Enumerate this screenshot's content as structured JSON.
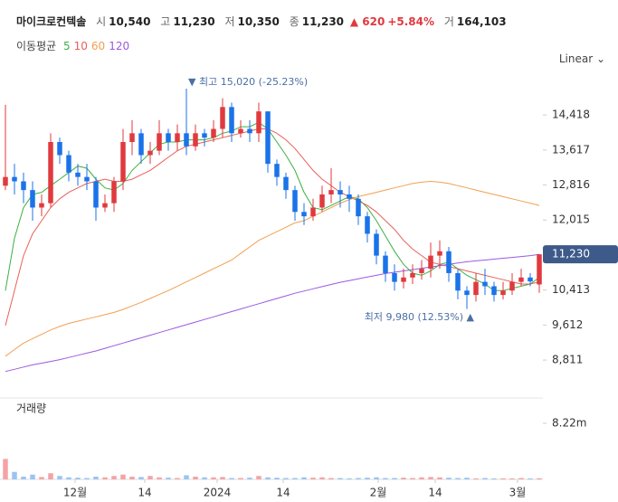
{
  "header": {
    "name": "마이크로컨텍솔",
    "open_label": "시",
    "open": "10,540",
    "high_label": "고",
    "high": "11,230",
    "low_label": "저",
    "low": "10,350",
    "close_label": "종",
    "close": "11,230",
    "change": "▲ 620",
    "change_pct": "+5.84%",
    "volume_label": "거",
    "volume": "164,103"
  },
  "ma_legend": {
    "title": "이동평균",
    "items": [
      {
        "label": "5",
        "color": "#3cb043"
      },
      {
        "label": "10",
        "color": "#e8605a"
      },
      {
        "label": "60",
        "color": "#f0a050"
      },
      {
        "label": "120",
        "color": "#9b59e0"
      }
    ]
  },
  "scale_button": "Linear",
  "chart_data": {
    "type": "candlestick",
    "up_color": "#e03a3e",
    "down_color": "#1a73e8",
    "open": [
      12800,
      13000,
      12900,
      12700,
      12300,
      12400,
      13800,
      13500,
      13100,
      13000,
      12900,
      12300,
      12400,
      12900,
      13800,
      14000,
      13500,
      13600,
      14000,
      13800,
      14000,
      13700,
      14000,
      13900,
      14100,
      14600,
      14000,
      14100,
      14000,
      14500,
      13300,
      13000,
      12700,
      12200,
      12100,
      12300,
      12600,
      12700,
      12600,
      12500,
      12100,
      11700,
      11200,
      10800,
      10600,
      10700,
      10800,
      10900,
      11200,
      11300,
      10800,
      10400,
      10300,
      10600,
      10500,
      10300,
      10400,
      10600,
      10700,
      10540
    ],
    "high": [
      14650,
      13300,
      13100,
      12900,
      12600,
      14000,
      13900,
      13600,
      13300,
      13300,
      13000,
      12600,
      13000,
      14100,
      14300,
      14100,
      13800,
      14300,
      14100,
      14200,
      15020,
      14200,
      14100,
      14300,
      14800,
      14700,
      14300,
      14300,
      14700,
      14500,
      13400,
      13100,
      12800,
      12400,
      12500,
      12800,
      13200,
      12900,
      12800,
      12600,
      12200,
      11800,
      11300,
      11000,
      10900,
      11000,
      11100,
      11500,
      11550,
      11400,
      10900,
      10500,
      10800,
      10900,
      10600,
      10600,
      10800,
      10900,
      10800,
      11230
    ],
    "low": [
      12700,
      12600,
      12400,
      12000,
      12100,
      12300,
      13300,
      12900,
      12800,
      12700,
      12000,
      12200,
      12200,
      12700,
      13500,
      13300,
      13300,
      13500,
      13600,
      13600,
      13500,
      13600,
      13700,
      13800,
      13900,
      13800,
      13900,
      13800,
      13800,
      13100,
      12800,
      12500,
      12000,
      11900,
      12000,
      12200,
      12400,
      12300,
      12200,
      11900,
      11500,
      11000,
      10600,
      10400,
      10450,
      10550,
      10650,
      10700,
      10900,
      10600,
      10200,
      9980,
      10150,
      10300,
      10150,
      10200,
      10300,
      10500,
      10500,
      10350
    ],
    "close": [
      13000,
      12900,
      12700,
      12300,
      12400,
      13800,
      13500,
      13100,
      13000,
      12900,
      12300,
      12400,
      12900,
      13800,
      14000,
      13500,
      13600,
      14000,
      13800,
      14000,
      13700,
      14000,
      13900,
      14100,
      14600,
      14000,
      14100,
      14000,
      14500,
      13300,
      13000,
      12700,
      12200,
      12100,
      12300,
      12600,
      12700,
      12600,
      12500,
      12100,
      11700,
      11200,
      10800,
      10600,
      10700,
      10800,
      10900,
      11200,
      11300,
      10800,
      10400,
      10300,
      10600,
      10500,
      10300,
      10400,
      10600,
      10700,
      10610,
      11230
    ],
    "series": [
      {
        "name": "5",
        "color": "#3cb043",
        "values": [
          10400,
          11600,
          12300,
          12600,
          12650,
          12800,
          12950,
          13100,
          13250,
          13200,
          12950,
          12750,
          12700,
          12850,
          13150,
          13350,
          13550,
          13750,
          13800,
          13800,
          13850,
          13850,
          13850,
          13900,
          14000,
          14050,
          14150,
          14150,
          14250,
          14100,
          13800,
          13500,
          13150,
          12650,
          12300,
          12250,
          12350,
          12450,
          12550,
          12500,
          12300,
          12000,
          11650,
          11300,
          11000,
          10800,
          10750,
          10850,
          11000,
          11050,
          10900,
          10750,
          10650,
          10550,
          10400,
          10400,
          10450,
          10500,
          10550,
          10700
        ]
      },
      {
        "name": "10",
        "color": "#e8605a",
        "values": [
          9600,
          10400,
          11200,
          11700,
          12000,
          12300,
          12500,
          12650,
          12750,
          12850,
          12900,
          12950,
          12900,
          12900,
          12950,
          13050,
          13150,
          13300,
          13450,
          13600,
          13700,
          13750,
          13800,
          13850,
          13900,
          13950,
          14000,
          14050,
          14100,
          14100,
          14000,
          13850,
          13650,
          13400,
          13150,
          12950,
          12800,
          12650,
          12550,
          12450,
          12350,
          12200,
          12000,
          11800,
          11550,
          11350,
          11200,
          11050,
          11000,
          10950,
          10900,
          10850,
          10800,
          10750,
          10700,
          10650,
          10600,
          10550,
          10550,
          10600
        ]
      },
      {
        "name": "60",
        "color": "#f0a050",
        "values": [
          8900,
          9050,
          9200,
          9300,
          9400,
          9500,
          9580,
          9650,
          9700,
          9750,
          9800,
          9850,
          9900,
          9970,
          10050,
          10130,
          10220,
          10310,
          10400,
          10500,
          10600,
          10700,
          10800,
          10900,
          11000,
          11100,
          11250,
          11400,
          11550,
          11650,
          11750,
          11850,
          11950,
          12000,
          12100,
          12200,
          12300,
          12400,
          12480,
          12550,
          12600,
          12650,
          12700,
          12750,
          12800,
          12850,
          12880,
          12900,
          12880,
          12850,
          12800,
          12750,
          12700,
          12650,
          12600,
          12550,
          12500,
          12450,
          12400,
          12350
        ]
      },
      {
        "name": "120",
        "color": "#9b59e0",
        "values": [
          8550,
          8600,
          8650,
          8700,
          8740,
          8780,
          8820,
          8870,
          8920,
          8970,
          9020,
          9080,
          9140,
          9200,
          9260,
          9320,
          9380,
          9440,
          9500,
          9560,
          9620,
          9680,
          9740,
          9800,
          9860,
          9920,
          9980,
          10040,
          10100,
          10160,
          10220,
          10280,
          10340,
          10390,
          10440,
          10490,
          10540,
          10590,
          10630,
          10670,
          10710,
          10750,
          10790,
          10820,
          10850,
          10880,
          10910,
          10940,
          10970,
          11000,
          11030,
          11060,
          11080,
          11100,
          11120,
          11140,
          11160,
          11180,
          11200,
          11230
        ]
      }
    ],
    "ylim": [
      8150,
      15290
    ],
    "yticks": [
      {
        "value": 14418,
        "label": "14,418"
      },
      {
        "value": 13617,
        "label": "13,617"
      },
      {
        "value": 12816,
        "label": "12,816"
      },
      {
        "value": 12015,
        "label": "12,015"
      },
      {
        "value": 10413,
        "label": "10,413"
      },
      {
        "value": 9612,
        "label": "9,612"
      },
      {
        "value": 8811,
        "label": "8,811"
      }
    ],
    "last_price_label": "11,230",
    "xlim": [
      -0.6,
      59.4
    ],
    "xticks": [
      {
        "value": 7.7,
        "label": "12월"
      },
      {
        "value": 15.4,
        "label": "14"
      },
      {
        "value": 23.4,
        "label": "2024"
      },
      {
        "value": 30.7,
        "label": "14"
      },
      {
        "value": 41.2,
        "label": "2월"
      },
      {
        "value": 47.5,
        "label": "14"
      },
      {
        "value": 56.6,
        "label": "3월"
      }
    ],
    "annotations": {
      "max": "▼ 최고 15,020 (-25.23%)",
      "min": "최저 9,980 (12.53%) ▲"
    },
    "volume": {
      "title": "거래량",
      "values": [
        3000000,
        1100000,
        400000,
        700000,
        350000,
        900000,
        500000,
        300000,
        250000,
        200000,
        400000,
        300000,
        500000,
        700000,
        400000,
        350000,
        500000,
        300000,
        250000,
        200000,
        600000,
        400000,
        300000,
        300000,
        350000,
        200000,
        200000,
        250000,
        500000,
        300000,
        250000,
        200000,
        200000,
        300000,
        250000,
        300000,
        200000,
        200000,
        150000,
        200000,
        250000,
        300000,
        200000,
        200000,
        250000,
        200000,
        300000,
        350000,
        300000,
        250000,
        200000,
        250000,
        150000,
        200000,
        150000,
        150000,
        150000,
        200000,
        150000,
        164103
      ],
      "ylim": [
        0,
        11930000
      ],
      "yticks": [
        {
          "value": 8220000,
          "label": "8.22m"
        }
      ],
      "up_color": "#f4a3a5",
      "down_color": "#9cc3f2"
    }
  }
}
